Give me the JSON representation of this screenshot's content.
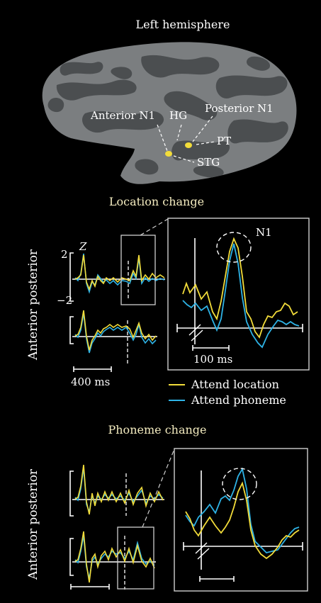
{
  "brain": {
    "title": "Left hemisphere",
    "labels": {
      "anterior_n1": "Anterior N1",
      "hg": "HG",
      "posterior_n1": "Posterior N1",
      "pt": "PT",
      "stg": "STG"
    }
  },
  "location_panel": {
    "title": "Location change",
    "ylabel": "Anterior posterior",
    "z_label": "Z",
    "tick_top": "2",
    "tick_bottom": "−2",
    "scale_bar_left": "400 ms",
    "peak_label": "N1",
    "scale_bar_zoom": "100 ms"
  },
  "legend": {
    "attend_location": "Attend location",
    "attend_phoneme": "Attend phoneme"
  },
  "phoneme_panel": {
    "title": "Phoneme change",
    "ylabel": "Anterior posterior"
  },
  "colors": {
    "background": "#000000",
    "attend_location": "#f2dc3a",
    "attend_phoneme": "#2eb3e6",
    "brain_light": "#7b7e80",
    "brain_dark": "#4a4d4f",
    "title_text": "#f4ecc0",
    "annotation": "#ffffff",
    "frame": "#cfcfcf"
  }
}
